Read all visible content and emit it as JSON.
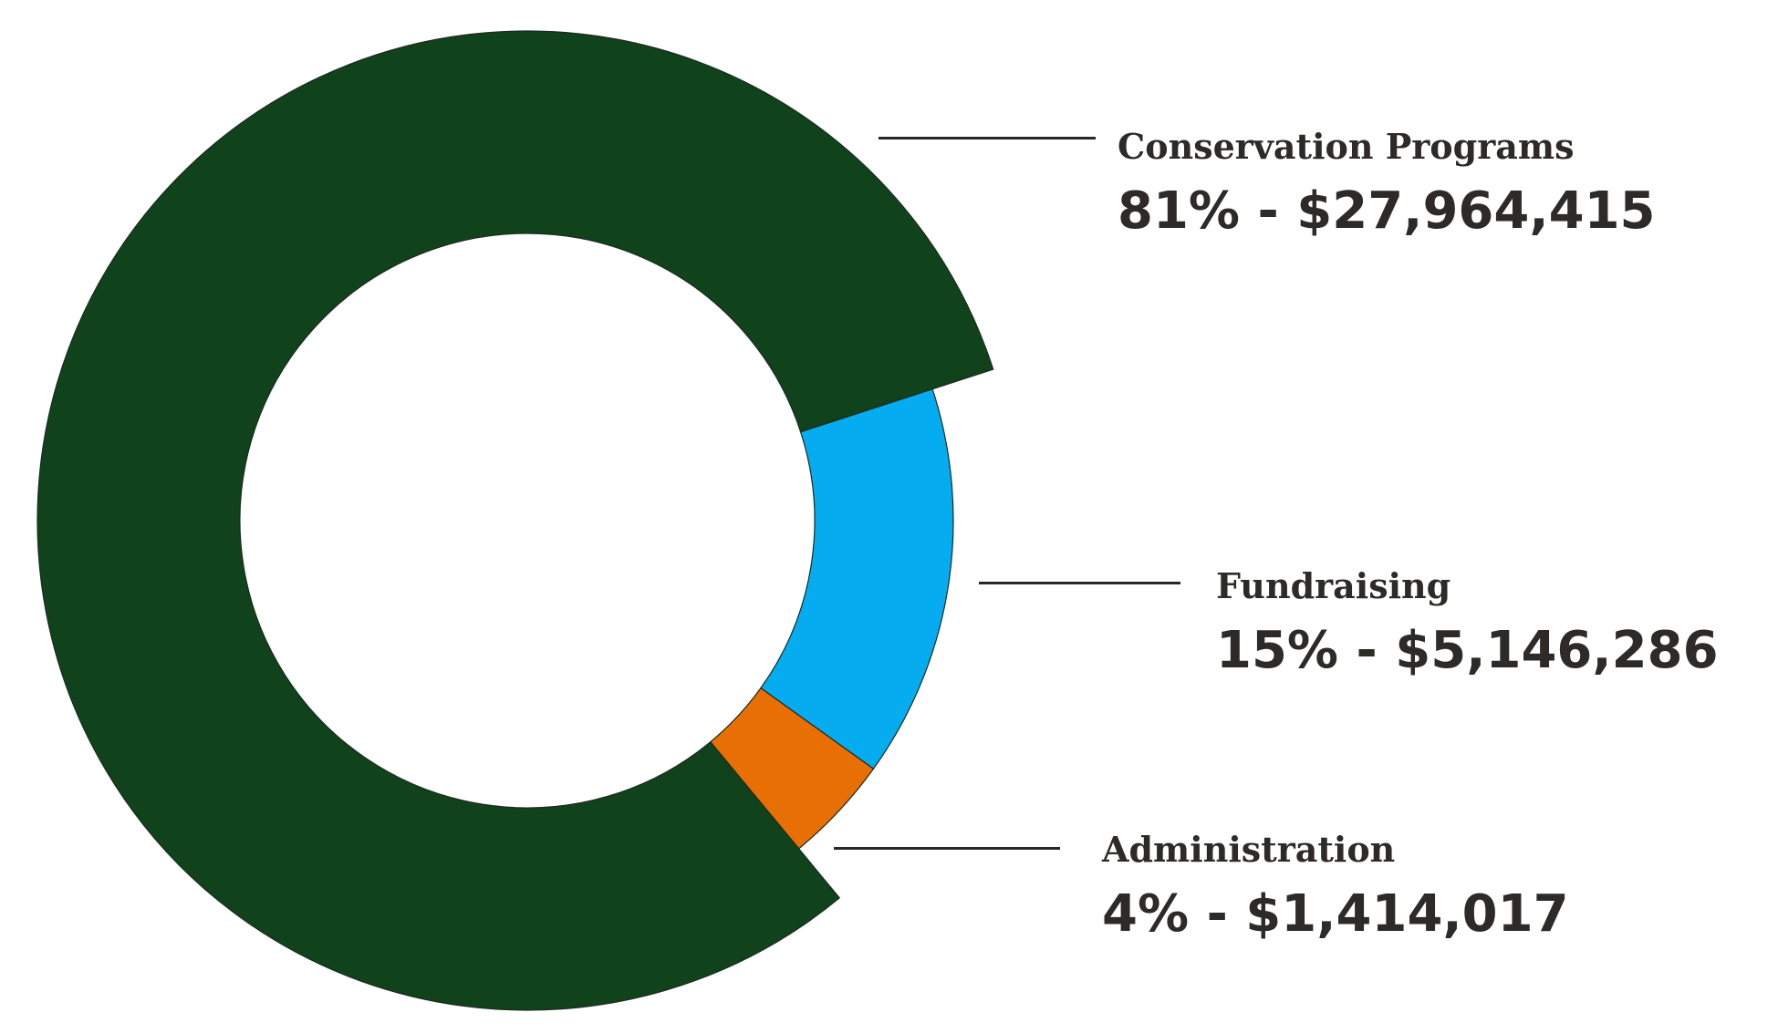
{
  "chart_data": {
    "type": "pie",
    "variant": "donut",
    "series": [
      {
        "name": "Conservation Programs",
        "percent": 81,
        "amount": 27964415,
        "label": "81% - $27,964,415",
        "color": "#10421b",
        "emphasized": true
      },
      {
        "name": "Fundraising",
        "percent": 15,
        "amount": 5146286,
        "label": "15% - $5,146,286",
        "color": "#05acf0",
        "emphasized": false
      },
      {
        "name": "Administration",
        "percent": 4,
        "amount": 1414017,
        "label": "4% - $1,414,017",
        "color": "#e86f04",
        "emphasized": false
      }
    ],
    "legend_placement": "right"
  }
}
